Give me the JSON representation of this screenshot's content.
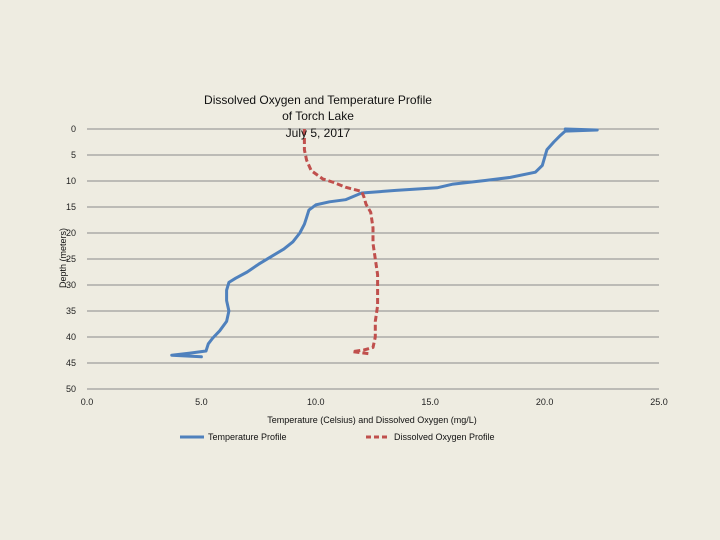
{
  "chart_data": {
    "type": "line",
    "title_lines": [
      "Dissolved Oxygen and Temperature Profile",
      "of Torch Lake",
      "July 5, 2017"
    ],
    "xlabel": "Temperature (Celsius) and Dissolved Oxygen (mg/L)",
    "ylabel": "Depth (meters)",
    "xlim": [
      0,
      25
    ],
    "ylim": [
      0,
      50
    ],
    "y_inverted": true,
    "x_ticks": [
      0,
      5,
      10,
      15,
      20,
      25
    ],
    "x_tick_labels": [
      "0.0",
      "5.0",
      "10.0",
      "15.0",
      "20.0",
      "25.0"
    ],
    "y_ticks": [
      0,
      5,
      10,
      15,
      20,
      25,
      30,
      35,
      40,
      45,
      50
    ],
    "y_tick_labels": [
      "0",
      "5",
      "10",
      "15",
      "20",
      "25",
      "30",
      "35",
      "40",
      "45",
      "50"
    ],
    "grid": "horizontal",
    "legend_position": "bottom",
    "series": [
      {
        "name": "Temperature Profile",
        "color": "#4f81bd",
        "style": "solid",
        "points": [
          [
            20.9,
            0.0
          ],
          [
            22.3,
            0.2
          ],
          [
            20.9,
            0.4
          ],
          [
            20.7,
            1.2
          ],
          [
            20.4,
            2.5
          ],
          [
            20.1,
            4.0
          ],
          [
            20.0,
            5.5
          ],
          [
            19.9,
            7.0
          ],
          [
            19.6,
            8.3
          ],
          [
            18.5,
            9.3
          ],
          [
            17.4,
            9.9
          ],
          [
            16.0,
            10.6
          ],
          [
            15.3,
            11.3
          ],
          [
            13.5,
            11.8
          ],
          [
            12.0,
            12.3
          ],
          [
            11.3,
            13.6
          ],
          [
            10.6,
            14.0
          ],
          [
            10.0,
            14.6
          ],
          [
            9.7,
            15.6
          ],
          [
            9.6,
            17.0
          ],
          [
            9.5,
            18.3
          ],
          [
            9.3,
            20.0
          ],
          [
            9.0,
            21.7
          ],
          [
            8.6,
            23.1
          ],
          [
            8.1,
            24.4
          ],
          [
            7.5,
            26.0
          ],
          [
            7.0,
            27.5
          ],
          [
            6.5,
            28.7
          ],
          [
            6.2,
            29.5
          ],
          [
            6.1,
            31.0
          ],
          [
            6.1,
            33.0
          ],
          [
            6.2,
            35.0
          ],
          [
            6.1,
            37.0
          ],
          [
            5.8,
            38.8
          ],
          [
            5.5,
            40.2
          ],
          [
            5.3,
            41.3
          ],
          [
            5.2,
            42.7
          ],
          [
            4.5,
            43.1
          ],
          [
            3.7,
            43.5
          ],
          [
            5.0,
            43.8
          ]
        ]
      },
      {
        "name": "Dissolved Oxygen Profile",
        "color": "#c0504d",
        "style": "dashed",
        "points": [
          [
            9.5,
            0.0
          ],
          [
            9.5,
            2.0
          ],
          [
            9.5,
            4.0
          ],
          [
            9.6,
            6.0
          ],
          [
            9.8,
            8.0
          ],
          [
            10.3,
            9.6
          ],
          [
            10.8,
            10.3
          ],
          [
            11.3,
            11.2
          ],
          [
            12.0,
            12.0
          ],
          [
            12.1,
            13.0
          ],
          [
            12.2,
            14.5
          ],
          [
            12.4,
            16.0
          ],
          [
            12.5,
            19.0
          ],
          [
            12.5,
            22.0
          ],
          [
            12.6,
            25.0
          ],
          [
            12.7,
            28.0
          ],
          [
            12.7,
            31.0
          ],
          [
            12.7,
            34.0
          ],
          [
            12.6,
            37.0
          ],
          [
            12.6,
            40.0
          ],
          [
            12.5,
            42.0
          ],
          [
            12.1,
            42.5
          ],
          [
            11.6,
            42.8
          ],
          [
            12.3,
            43.2
          ]
        ]
      }
    ]
  }
}
